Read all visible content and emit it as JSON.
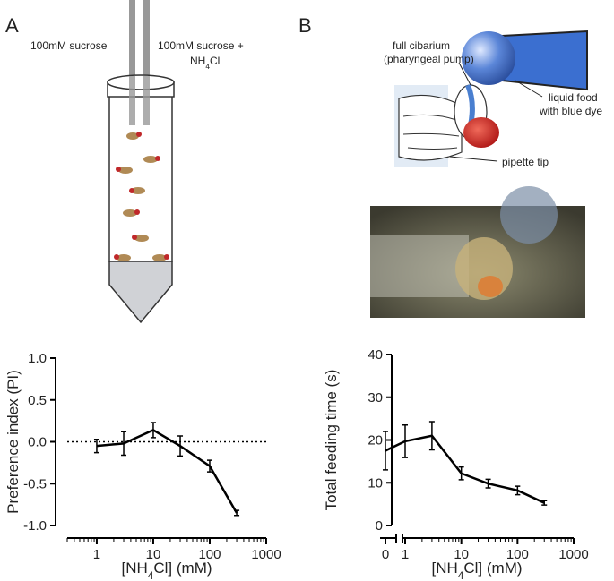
{
  "panels": {
    "a": "A",
    "b": "B"
  },
  "diagram_a": {
    "left_label": "100mM sucrose",
    "right_label": [
      "100mM sucrose +",
      "NH4Cl"
    ]
  },
  "diagram_b": {
    "cibarium_label": [
      "full cibarium",
      "(pharyngeal pump)"
    ],
    "food_label": [
      "liquid food",
      "with blue dye"
    ],
    "pipette_label": "pipette tip"
  },
  "chart_data": [
    {
      "type": "line",
      "x_label": "[NH4Cl] (mM)",
      "y_label": "Preference index (PI)",
      "log_x": true,
      "color": "#000000",
      "x": [
        1,
        3,
        10,
        30,
        100,
        300
      ],
      "values": [
        -0.05,
        -0.02,
        0.14,
        -0.05,
        -0.29,
        -0.85
      ],
      "errors": [
        0.08,
        0.14,
        0.09,
        0.12,
        0.07,
        0.03
      ],
      "xlim": [
        0.3,
        1000
      ],
      "xticks": [
        1,
        10,
        100,
        1000
      ],
      "ylim": [
        -1,
        1
      ],
      "yticks": [
        {
          "value": -1,
          "label": "-1.0"
        },
        {
          "value": -0.5,
          "label": "-0.5"
        },
        {
          "value": 0,
          "label": "0.0"
        },
        {
          "value": 0.5,
          "label": "0.5"
        },
        {
          "value": 1,
          "label": "1.0"
        }
      ],
      "hline": 0
    },
    {
      "type": "line",
      "x_label": "[NH4Cl] (mM)",
      "y_label": "Total feeding time (s)",
      "log_x": true,
      "x_break": true,
      "color": "#000000",
      "x": [
        0,
        1,
        3,
        10,
        30,
        100,
        300
      ],
      "values": [
        17.5,
        19.7,
        21,
        12.2,
        9.8,
        8.2,
        5.3
      ],
      "errors": [
        4.5,
        3.8,
        3.3,
        1.5,
        1,
        1,
        0.5
      ],
      "xlim": [
        1,
        1000
      ],
      "xticks": [
        0,
        1,
        10,
        100,
        1000
      ],
      "ylim": [
        0,
        40
      ],
      "yticks": [
        0,
        10,
        20,
        30,
        40
      ]
    }
  ]
}
